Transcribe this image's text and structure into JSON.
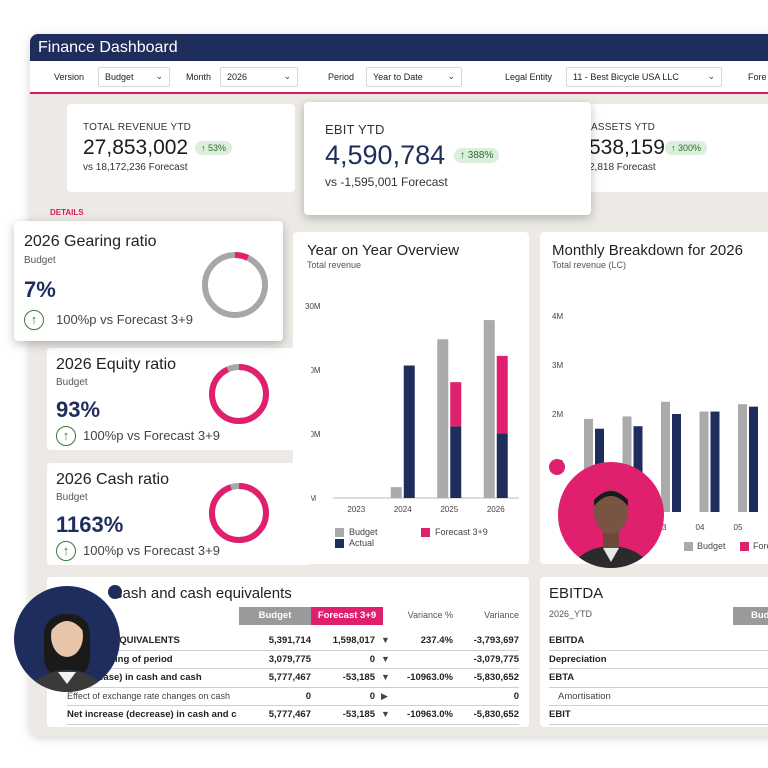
{
  "window": {
    "title": "Finance Dashboard"
  },
  "filters": {
    "version": {
      "label": "Version",
      "value": "Budget"
    },
    "month": {
      "label": "Month",
      "value": "2026"
    },
    "period": {
      "label": "Period",
      "value": "Year to Date"
    },
    "legal_entity": {
      "label": "Legal Entity",
      "value": "11 - Best Bicycle USA LLC"
    },
    "forecast_cut": "Fore"
  },
  "kpis": {
    "revenue": {
      "label": "TOTAL REVENUE YTD",
      "value": "27,853,002",
      "badge": "↑ 53%",
      "sub": "vs 18,172,236 Forecast"
    },
    "ebit": {
      "label": "EBIT YTD",
      "value": "4,590,784",
      "badge": "↑ 388%",
      "sub": "vs -1,595,001 Forecast"
    },
    "assets": {
      "label": "ASSETS YTD",
      "value": "538,159",
      "badge": "↑ 300%",
      "sub": "2,818 Forecast"
    }
  },
  "details_label": "DETAILS",
  "ratios": [
    {
      "title": "2026 Gearing ratio",
      "sub": "Budget",
      "value": "7%",
      "foot": "100%p vs Forecast 3+9",
      "fill": 0.07,
      "color": "#e0206f"
    },
    {
      "title": "2026 Equity ratio",
      "sub": "Budget",
      "value": "93%",
      "foot": "100%p vs Forecast 3+9",
      "fill": 0.93,
      "color": "#e0206f"
    },
    {
      "title": "2026 Cash ratio",
      "sub": "Budget",
      "value": "1163%",
      "foot": "100%p vs Forecast 3+9",
      "fill": 0.95,
      "color": "#e0206f"
    }
  ],
  "colors": {
    "budget": "#aaaaaa",
    "actual": "#1f2d5c",
    "forecast": "#e0206f",
    "accent": "#d81b60"
  },
  "chart_data": [
    {
      "type": "bar",
      "title": "Year on Year Overview",
      "subtitle": "Total revenue",
      "categories": [
        "2023",
        "2024",
        "2025",
        "2026"
      ],
      "y_ticks": [
        "0M",
        "10M",
        "20M",
        "30M"
      ],
      "ylim": [
        0,
        30
      ],
      "series": [
        {
          "name": "Budget",
          "values": [
            0,
            1.7,
            24.8,
            27.8
          ]
        },
        {
          "name": "Actual",
          "values": [
            0,
            20.7,
            11.2,
            10.1
          ]
        },
        {
          "name": "Forecast 3+9",
          "values": [
            0,
            0,
            6.9,
            12.1
          ]
        }
      ],
      "legend": [
        "Budget",
        "Forecast 3+9",
        "Actual"
      ]
    },
    {
      "type": "bar",
      "title": "Monthly Breakdown for 2026",
      "subtitle": "Total revenue (LC)",
      "x_ticks": [
        "03",
        "04",
        "05"
      ],
      "y_ticks": [
        "4M",
        "3M",
        "2M",
        "1M"
      ],
      "ylim": [
        0,
        4
      ],
      "series": [
        {
          "name": "Budget",
          "values": [
            1.9,
            1.95,
            2.25,
            2.05,
            2.2,
            2.3
          ]
        },
        {
          "name": "Actual",
          "values": [
            1.7,
            1.75,
            2.0,
            2.05,
            2.15,
            0
          ]
        }
      ],
      "legend": [
        "Budget",
        "Fore"
      ]
    }
  ],
  "cash_table": {
    "title": "Cash and cash equivalents",
    "title_visible": "cash and cash equivalents",
    "headers": {
      "budget": "Budget",
      "forecast": "Forecast 3+9",
      "variance_pct": "Variance %",
      "variance": "Variance"
    },
    "rows": [
      {
        "label": "ND CASH EQUIVALENTS",
        "budget": "5,391,714",
        "forecast": "1,598,017",
        "tri": "▼",
        "vpct": "237.4%",
        "var": "-3,793,697",
        "bold": true
      },
      {
        "label": "the beginning of period",
        "budget": "3,079,775",
        "forecast": "0",
        "tri": "▼",
        "vpct": "",
        "var": "-3,079,775",
        "bold": true
      },
      {
        "label": "e (decrease) in cash and cash",
        "budget": "5,777,467",
        "forecast": "-53,185",
        "tri": "▼",
        "vpct": "-10963.0%",
        "var": "-5,830,652",
        "bold": true
      },
      {
        "label": "Effect of exchange rate changes on cash",
        "budget": "0",
        "forecast": "0",
        "tri": "▶",
        "vpct": "",
        "var": "0",
        "bold": false
      },
      {
        "label": "Net increase (decrease) in cash and ca",
        "budget": "5,777,467",
        "forecast": "-53,185",
        "tri": "▼",
        "vpct": "-10963.0%",
        "var": "-5,830,652",
        "bold": true
      }
    ]
  },
  "ebitda_table": {
    "title": "EBITDA",
    "subtitle": "2026_YTD",
    "header_budget": "Bud",
    "rows": [
      {
        "label": "EBITDA",
        "value": "4,",
        "bold": true
      },
      {
        "label": "Depreciation",
        "value": "",
        "bold": true
      },
      {
        "label": "EBTA",
        "value": "4,",
        "bold": true
      },
      {
        "label": "Amortisation",
        "value": "",
        "bold": false
      },
      {
        "label": "EBIT",
        "value": "4,",
        "bold": true
      }
    ]
  }
}
